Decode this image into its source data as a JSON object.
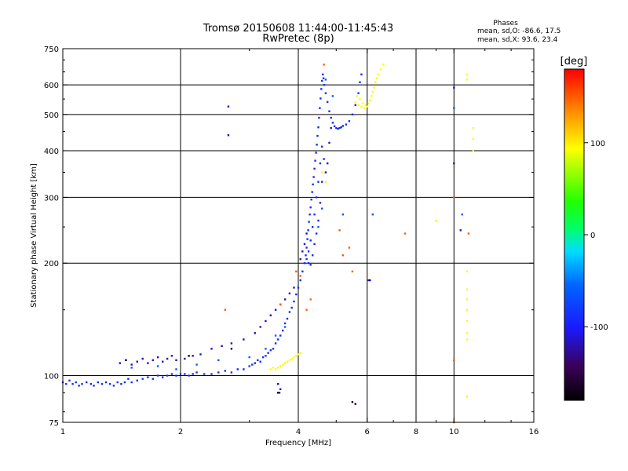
{
  "chart_data": {
    "type": "scatter",
    "title": "Tromsø 20150608 11:44:00-11:45:43",
    "subtitle": "RwPretec (8p)",
    "xlabel": "Frequency [MHz]",
    "ylabel": "Stationary phase Virtual Height [km]",
    "x_scale": "log",
    "y_scale": "log",
    "xlim": [
      1,
      16
    ],
    "ylim": [
      75,
      750
    ],
    "x_ticks": [
      1,
      2,
      4,
      6,
      8,
      10,
      16
    ],
    "x_tick_labels": [
      "1",
      "2",
      "4",
      "6",
      "8",
      "10",
      "16"
    ],
    "y_ticks": [
      75,
      100,
      200,
      300,
      400,
      500,
      600,
      750
    ],
    "y_tick_labels": [
      "75",
      "100",
      "200",
      "300",
      "400",
      "500",
      "600",
      "750"
    ],
    "y_minor_ticks": [
      80,
      90,
      150,
      250,
      350,
      450,
      550,
      650,
      700
    ],
    "grid_x": [
      2,
      4,
      6,
      8,
      10
    ],
    "grid_y": [
      100,
      200,
      300,
      400,
      500,
      600
    ],
    "phase_stats": {
      "heading": "Phases",
      "line_o": "mean, sd,O: -86.6, 17.5",
      "line_x": "mean, sd,X:  93.6, 23.4"
    },
    "colorbar": {
      "label": "[deg]",
      "range": [
        -180,
        180
      ],
      "ticks": [
        100,
        0,
        -100
      ],
      "tick_labels": [
        "100",
        "0",
        "-100"
      ]
    },
    "series": [
      {
        "name": "",
        "phase": -90,
        "points": [
          [
            1.0,
            96
          ],
          [
            1.02,
            95
          ],
          [
            1.04,
            97
          ],
          [
            1.06,
            95
          ],
          [
            1.08,
            96
          ],
          [
            1.1,
            94
          ],
          [
            1.12,
            95
          ],
          [
            1.15,
            96
          ],
          [
            1.18,
            95
          ],
          [
            1.2,
            94
          ],
          [
            1.23,
            96
          ],
          [
            1.26,
            95
          ],
          [
            1.29,
            96
          ],
          [
            1.32,
            95
          ],
          [
            1.35,
            94
          ],
          [
            1.38,
            96
          ],
          [
            1.41,
            95
          ],
          [
            1.44,
            96
          ],
          [
            1.47,
            98
          ],
          [
            1.5,
            96
          ],
          [
            1.55,
            97
          ],
          [
            1.6,
            98
          ],
          [
            1.65,
            99
          ],
          [
            1.7,
            98
          ],
          [
            1.75,
            100
          ],
          [
            1.8,
            99
          ],
          [
            1.85,
            100
          ],
          [
            1.9,
            101
          ],
          [
            1.95,
            100
          ],
          [
            2.0,
            101
          ],
          [
            2.05,
            101
          ],
          [
            2.1,
            100
          ],
          [
            2.15,
            101
          ],
          [
            2.2,
            102
          ],
          [
            2.3,
            101
          ],
          [
            2.4,
            101
          ],
          [
            2.5,
            102
          ],
          [
            2.6,
            103
          ],
          [
            2.7,
            102
          ],
          [
            2.8,
            104
          ],
          [
            2.9,
            104
          ],
          [
            3.0,
            106
          ],
          [
            3.05,
            107
          ],
          [
            3.1,
            108
          ],
          [
            3.15,
            110
          ],
          [
            3.2,
            109
          ],
          [
            3.25,
            112
          ],
          [
            3.3,
            113
          ],
          [
            3.35,
            115
          ],
          [
            3.4,
            117
          ],
          [
            3.45,
            118
          ],
          [
            3.5,
            122
          ],
          [
            3.55,
            125
          ],
          [
            3.6,
            128
          ],
          [
            3.65,
            132
          ],
          [
            3.7,
            138
          ],
          [
            3.75,
            142
          ],
          [
            3.8,
            148
          ],
          [
            3.85,
            152
          ],
          [
            3.9,
            158
          ],
          [
            3.95,
            165
          ],
          [
            4.0,
            172
          ],
          [
            4.05,
            180
          ],
          [
            4.1,
            190
          ],
          [
            4.15,
            200
          ],
          [
            4.18,
            210
          ],
          [
            4.2,
            220
          ],
          [
            4.22,
            232
          ],
          [
            4.24,
            245
          ],
          [
            4.26,
            258
          ],
          [
            4.28,
            270
          ],
          [
            4.3,
            282
          ],
          [
            4.32,
            296
          ],
          [
            4.34,
            310
          ],
          [
            4.36,
            325
          ],
          [
            4.38,
            340
          ],
          [
            4.4,
            358
          ],
          [
            4.42,
            376
          ],
          [
            4.44,
            395
          ],
          [
            4.46,
            415
          ],
          [
            4.48,
            438
          ],
          [
            4.5,
            462
          ],
          [
            4.52,
            490
          ],
          [
            4.54,
            520
          ],
          [
            4.56,
            552
          ],
          [
            4.58,
            585
          ],
          [
            4.6,
            615
          ],
          [
            4.62,
            640
          ],
          [
            4.64,
            625
          ],
          [
            4.66,
            600
          ],
          [
            4.7,
            570
          ],
          [
            4.75,
            540
          ],
          [
            4.8,
            510
          ],
          [
            4.85,
            490
          ],
          [
            4.9,
            475
          ],
          [
            4.95,
            465
          ],
          [
            5.0,
            460
          ],
          [
            5.05,
            458
          ],
          [
            5.1,
            460
          ],
          [
            5.15,
            462
          ],
          [
            5.2,
            466
          ],
          [
            5.3,
            470
          ],
          [
            5.4,
            480
          ],
          [
            5.5,
            500
          ],
          [
            5.6,
            530
          ],
          [
            5.7,
            570
          ],
          [
            5.75,
            610
          ],
          [
            5.8,
            640
          ],
          [
            4.2,
            205
          ],
          [
            4.25,
            215
          ],
          [
            4.3,
            230
          ],
          [
            4.35,
            250
          ],
          [
            4.4,
            270
          ],
          [
            4.45,
            300
          ],
          [
            4.5,
            330
          ],
          [
            4.55,
            370
          ],
          [
            4.6,
            410
          ],
          [
            4.25,
            200
          ],
          [
            4.3,
            198
          ],
          [
            4.35,
            210
          ],
          [
            4.4,
            225
          ],
          [
            4.45,
            240
          ],
          [
            4.5,
            260
          ],
          [
            4.55,
            290
          ],
          [
            4.6,
            330
          ],
          [
            4.65,
            380
          ]
        ]
      },
      {
        "name": "",
        "phase": -115,
        "points": [
          [
            1.4,
            108
          ],
          [
            1.45,
            110
          ],
          [
            1.5,
            107
          ],
          [
            1.55,
            109
          ],
          [
            1.6,
            111
          ],
          [
            1.65,
            108
          ],
          [
            1.7,
            110
          ],
          [
            1.75,
            112
          ],
          [
            1.8,
            109
          ],
          [
            1.85,
            111
          ],
          [
            1.9,
            113
          ],
          [
            1.95,
            110
          ],
          [
            2.05,
            111
          ],
          [
            2.15,
            113
          ],
          [
            2.25,
            114
          ],
          [
            2.4,
            118
          ],
          [
            2.55,
            120
          ],
          [
            2.7,
            122
          ],
          [
            2.9,
            125
          ],
          [
            3.1,
            130
          ],
          [
            3.2,
            135
          ],
          [
            3.3,
            140
          ],
          [
            3.4,
            145
          ],
          [
            3.5,
            150
          ],
          [
            3.6,
            155
          ],
          [
            3.7,
            160
          ],
          [
            3.8,
            166
          ],
          [
            3.9,
            172
          ],
          [
            3.55,
            95
          ],
          [
            3.6,
            92
          ],
          [
            3.58,
            90
          ],
          [
            2.65,
            525
          ],
          [
            2.65,
            440
          ],
          [
            10.0,
            590
          ],
          [
            10.0,
            370
          ],
          [
            10.4,
            245
          ],
          [
            6.05,
            180
          ],
          [
            4.05,
            205
          ],
          [
            4.1,
            215
          ],
          [
            4.15,
            225
          ],
          [
            4.2,
            240
          ],
          [
            4.7,
            350
          ],
          [
            4.75,
            370
          ],
          [
            4.8,
            420
          ],
          [
            4.85,
            460
          ]
        ]
      },
      {
        "name": "",
        "phase": -60,
        "points": [
          [
            1.5,
            105
          ],
          [
            1.75,
            106
          ],
          [
            1.95,
            104
          ],
          [
            2.2,
            107
          ],
          [
            2.5,
            110
          ],
          [
            3.0,
            112
          ],
          [
            3.3,
            118
          ],
          [
            3.5,
            128
          ],
          [
            3.7,
            135
          ],
          [
            4.5,
            250
          ],
          [
            4.6,
            280
          ],
          [
            5.2,
            270
          ],
          [
            6.2,
            270
          ],
          [
            10.0,
            520
          ],
          [
            10.5,
            270
          ],
          [
            4.7,
            620
          ],
          [
            4.9,
            560
          ]
        ]
      },
      {
        "name": "",
        "phase": 95,
        "points": [
          [
            3.4,
            104
          ],
          [
            3.45,
            105
          ],
          [
            3.5,
            104
          ],
          [
            3.55,
            105
          ],
          [
            3.6,
            106
          ],
          [
            3.65,
            107
          ],
          [
            3.7,
            108
          ],
          [
            3.75,
            109
          ],
          [
            3.8,
            110
          ],
          [
            3.85,
            111
          ],
          [
            3.9,
            112
          ],
          [
            3.95,
            113
          ],
          [
            4.0,
            114
          ],
          [
            4.05,
            115
          ],
          [
            5.6,
            540
          ],
          [
            5.7,
            530
          ],
          [
            5.8,
            525
          ],
          [
            5.9,
            520
          ],
          [
            6.0,
            525
          ],
          [
            6.1,
            545
          ],
          [
            6.2,
            575
          ],
          [
            6.3,
            610
          ],
          [
            6.4,
            640
          ],
          [
            6.5,
            660
          ],
          [
            5.65,
            560
          ],
          [
            5.75,
            550
          ],
          [
            5.85,
            535
          ],
          [
            5.95,
            530
          ],
          [
            6.05,
            535
          ],
          [
            6.15,
            560
          ],
          [
            6.25,
            590
          ],
          [
            6.35,
            625
          ],
          [
            6.6,
            680
          ],
          [
            9.0,
            260
          ],
          [
            10.8,
            640
          ],
          [
            10.8,
            620
          ],
          [
            11.2,
            460
          ],
          [
            11.2,
            430
          ],
          [
            11.2,
            400
          ],
          [
            10.8,
            190
          ],
          [
            10.8,
            170
          ],
          [
            10.8,
            160
          ],
          [
            10.8,
            150
          ],
          [
            10.8,
            140
          ],
          [
            10.8,
            130
          ],
          [
            10.8,
            125
          ],
          [
            10.8,
            88
          ],
          [
            4.6,
            350
          ],
          [
            4.7,
            330
          ]
        ]
      },
      {
        "name": "",
        "phase": 150,
        "points": [
          [
            2.6,
            150
          ],
          [
            3.95,
            190
          ],
          [
            4.05,
            185
          ],
          [
            4.2,
            150
          ],
          [
            4.3,
            160
          ],
          [
            5.1,
            245
          ],
          [
            5.4,
            220
          ],
          [
            5.2,
            210
          ],
          [
            5.5,
            190
          ],
          [
            7.5,
            240
          ],
          [
            10.0,
            300
          ],
          [
            10.0,
            110
          ],
          [
            10.0,
            75
          ],
          [
            10.9,
            240
          ],
          [
            3.6,
            155
          ],
          [
            4.65,
            680
          ]
        ]
      },
      {
        "name": "",
        "phase": -160,
        "points": [
          [
            5.5,
            85
          ],
          [
            5.6,
            84
          ],
          [
            6.1,
            180
          ],
          [
            3.55,
            90
          ],
          [
            1.45,
            110
          ],
          [
            2.1,
            113
          ],
          [
            2.7,
            118
          ]
        ]
      }
    ]
  }
}
